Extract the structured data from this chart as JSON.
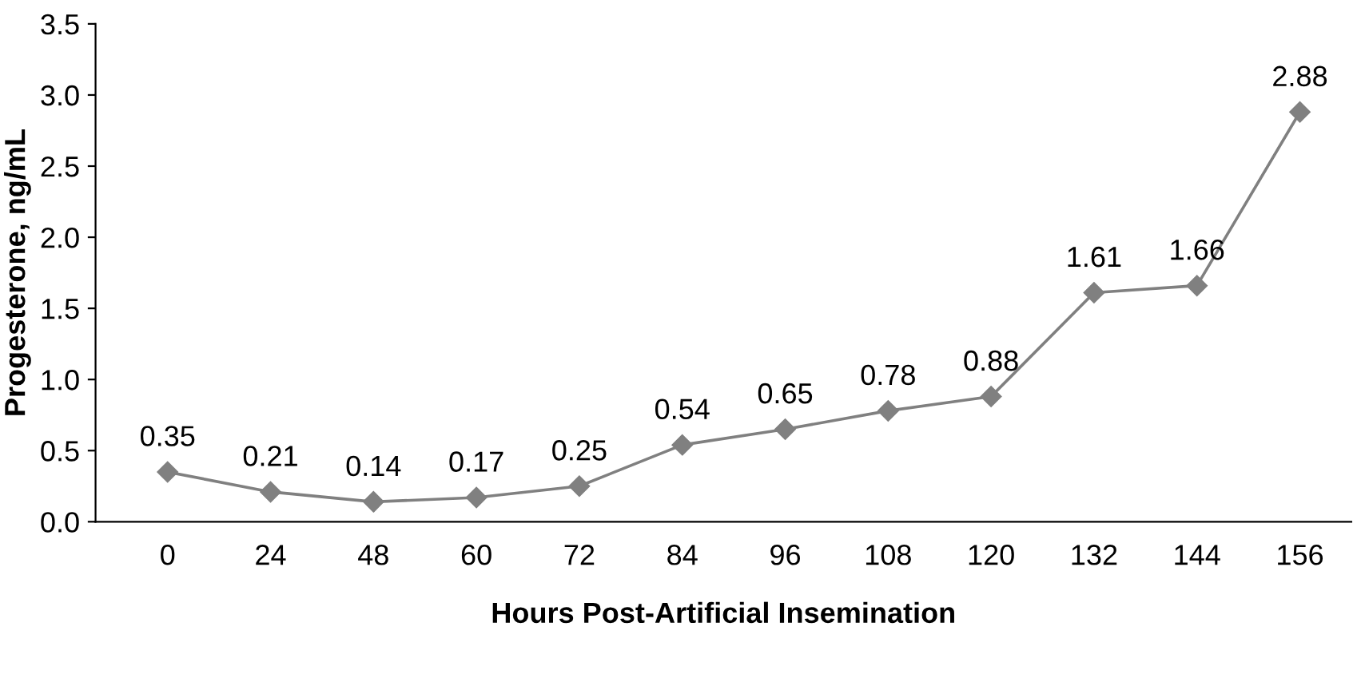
{
  "chart_data": {
    "type": "line",
    "xlabel": "Hours Post-Artificial Insemination",
    "ylabel": "Progesterone, ng/mL",
    "categories": [
      "0",
      "24",
      "48",
      "60",
      "72",
      "84",
      "96",
      "108",
      "120",
      "132",
      "144",
      "156"
    ],
    "series": [
      {
        "color": "#808080",
        "values": [
          0.35,
          0.21,
          0.14,
          0.17,
          0.25,
          0.54,
          0.65,
          0.78,
          0.88,
          1.61,
          1.66,
          2.88
        ]
      }
    ],
    "ylim": [
      0,
      3.5
    ],
    "yticks": [
      {
        "value": 0,
        "label": "0.0"
      },
      0.5,
      {
        "value": 1,
        "label": "1.0"
      },
      1.5,
      {
        "value": 2,
        "label": "2.0"
      },
      2.5,
      {
        "value": 3,
        "label": "3.0"
      },
      3.5
    ],
    "data_labels": true,
    "marker": "diamond",
    "line_style": "solid",
    "grid": false,
    "legend": false
  }
}
